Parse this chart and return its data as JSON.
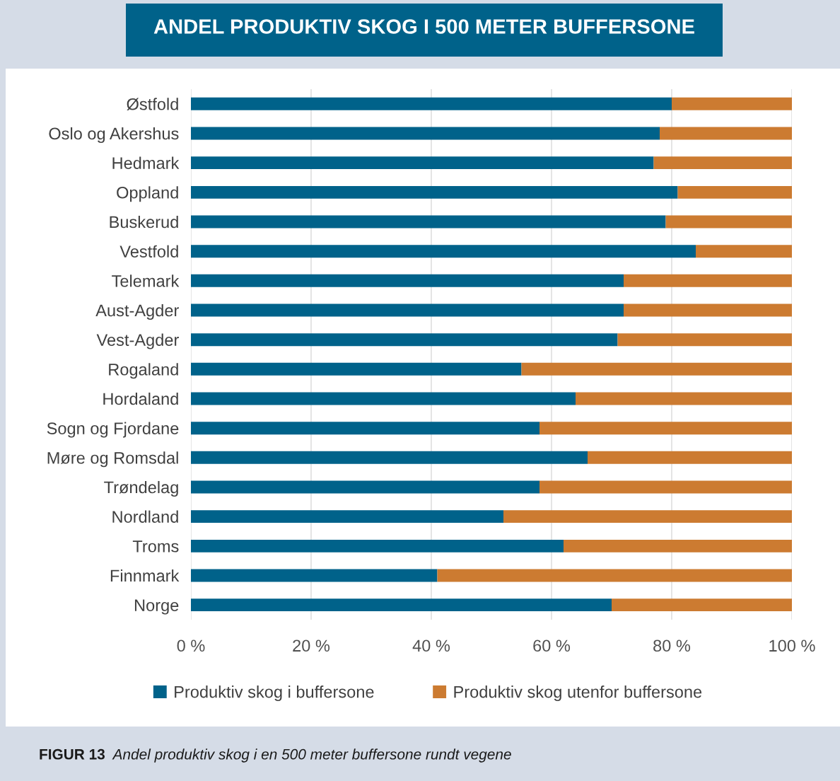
{
  "chart_data": {
    "type": "bar",
    "orientation": "horizontal",
    "stacked": true,
    "title": "ANDEL PRODUKTIV SKOG I 500 METER BUFFERSONE",
    "categories": [
      "Østfold",
      "Oslo og Akershus",
      "Hedmark",
      "Oppland",
      "Buskerud",
      "Vestfold",
      "Telemark",
      "Aust-Agder",
      "Vest-Agder",
      "Rogaland",
      "Hordaland",
      "Sogn og Fjordane",
      "Møre og Romsdal",
      "Trøndelag",
      "Nordland",
      "Troms",
      "Finnmark",
      "Norge"
    ],
    "series": [
      {
        "name": "Produktiv skog i buffersone",
        "color": "#00628a",
        "values": [
          80,
          78,
          77,
          81,
          79,
          84,
          72,
          72,
          71,
          55,
          64,
          58,
          66,
          58,
          52,
          62,
          41,
          70
        ]
      },
      {
        "name": "Produktiv skog utenfor buffersone",
        "color": "#cc7b31",
        "values": [
          20,
          22,
          23,
          19,
          21,
          16,
          28,
          28,
          29,
          45,
          36,
          42,
          34,
          42,
          48,
          38,
          59,
          30
        ]
      }
    ],
    "xlim": [
      0,
      100
    ],
    "xticks": [
      {
        "value": 0,
        "label": "0 %"
      },
      {
        "value": 20,
        "label": "20 %"
      },
      {
        "value": 40,
        "label": "40 %"
      },
      {
        "value": 60,
        "label": "60 %"
      },
      {
        "value": 80,
        "label": "80 %"
      },
      {
        "value": 100,
        "label": "100 %"
      }
    ],
    "grid": "x",
    "legend": "bottom",
    "annotations": [
      "FIGUR 13",
      "Andel produktiv skog i en 500 meter buffersone rundt vegene"
    ]
  }
}
